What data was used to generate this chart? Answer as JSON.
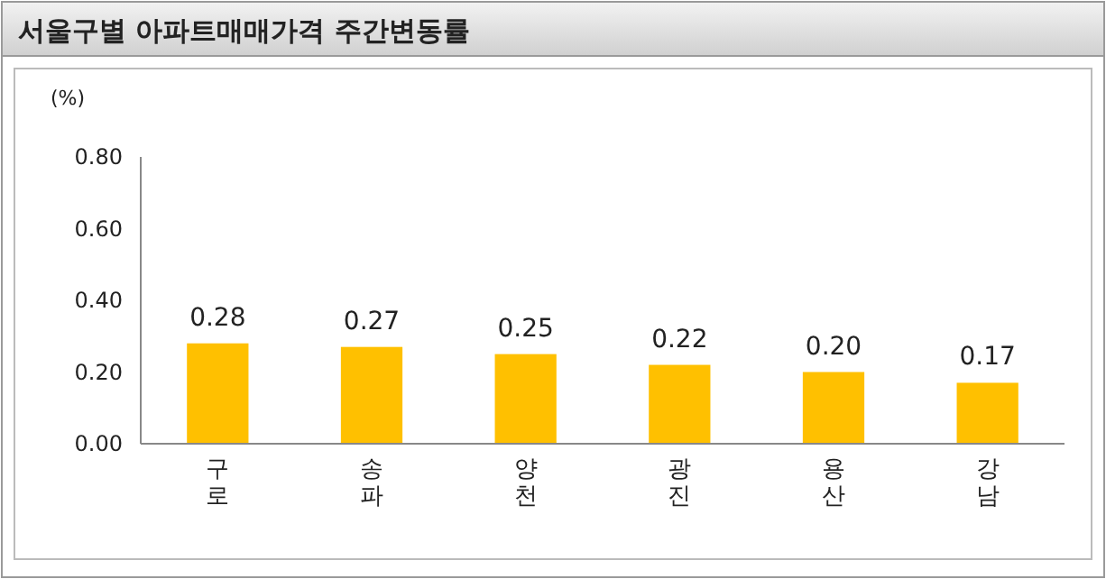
{
  "chart_data": {
    "type": "bar",
    "title": "서울구별 아파트매매가격 주간변동률",
    "ylabel": "(%)",
    "categories": [
      "구로",
      "송파",
      "양천",
      "광진",
      "용산",
      "강남"
    ],
    "values": [
      0.28,
      0.27,
      0.25,
      0.22,
      0.2,
      0.17
    ],
    "value_labels": [
      "0.28",
      "0.27",
      "0.25",
      "0.22",
      "0.20",
      "0.17"
    ],
    "color": "#ffc000",
    "ylim": [
      0,
      0.8
    ],
    "yticks": [
      {
        "value": 0,
        "label": "0.00"
      },
      {
        "value": 0.2,
        "label": "0.20"
      },
      {
        "value": 0.4,
        "label": "0.40"
      },
      {
        "value": 0.6,
        "label": "0.60"
      },
      {
        "value": 0.8,
        "label": "0.80"
      }
    ],
    "grid": false
  }
}
